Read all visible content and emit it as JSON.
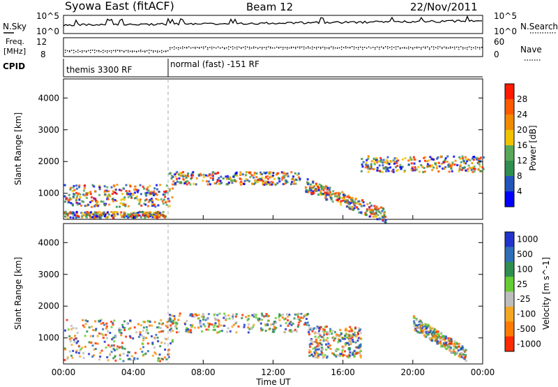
{
  "header": {
    "station": "Syowa East (fitACF)",
    "beam": "Beam 12",
    "date": "22/Nov/2011"
  },
  "noise_panel": {
    "left_label": "N.Sky",
    "right_label": "N.Search",
    "left_ticks": [
      "10^5",
      "10^0"
    ],
    "right_ticks": [
      "10^5",
      "10^0"
    ]
  },
  "freq_panel": {
    "left_label_line1": "Freq.",
    "left_label_line2": "[MHz]",
    "left_ticks": [
      "12",
      "8"
    ],
    "right_label": "Nave",
    "right_ticks": [
      "60",
      "0"
    ]
  },
  "cpid": {
    "label": "CPID",
    "segments": [
      {
        "name": "themis 3300 RF",
        "start_hour": 0,
        "end_hour": 6
      },
      {
        "name": "normal (fast) -151 RF",
        "start_hour": 6,
        "end_hour": 24
      }
    ]
  },
  "chart_data": [
    {
      "type": "heatmap",
      "title": "",
      "xlabel": "Time UT",
      "ylabel": "Slant Range [km]",
      "xlim": [
        0,
        24
      ],
      "ylim": [
        180,
        4600
      ],
      "x_ticks": [
        "00:00",
        "04:00",
        "08:00",
        "12:00",
        "16:00",
        "20:00",
        "00:00"
      ],
      "y_ticks": [
        1000,
        2000,
        3000,
        4000
      ],
      "colorbar": {
        "label": "Power [dB]",
        "range": [
          0,
          32
        ],
        "ticks": [
          "4",
          "8",
          "12",
          "16",
          "20",
          "24",
          "28"
        ],
        "colors": [
          "#0000ff",
          "#2255bb",
          "#2f8f4f",
          "#58a85a",
          "#f0c200",
          "#f08a00",
          "#ff5a00",
          "#ff1a00"
        ]
      },
      "features": [
        {
          "name": "near-range band",
          "start_hour": 0,
          "end_hour": 5.8,
          "range_km": [
            250,
            450
          ],
          "level": "20-28"
        },
        {
          "name": "E-region echoes",
          "start_hour": 0,
          "end_hour": 6.2,
          "range_km": [
            600,
            1300
          ],
          "level": "12-28"
        },
        {
          "name": "F-region band",
          "start_hour": 6,
          "end_hour": 13.5,
          "range_km": [
            1300,
            1700
          ],
          "level": "8-20"
        },
        {
          "name": "descending echo",
          "start_hour": 13.8,
          "end_hour": 18.5,
          "range_km": [
            300,
            1300
          ],
          "level": "16-28"
        },
        {
          "name": "late band",
          "start_hour": 17,
          "end_hour": 24,
          "range_km": [
            1700,
            2200
          ],
          "level": "8-16"
        }
      ]
    },
    {
      "type": "heatmap",
      "title": "",
      "xlabel": "Time UT",
      "ylabel": "Slant Range [km]",
      "xlim": [
        0,
        24
      ],
      "ylim": [
        180,
        4600
      ],
      "x_ticks": [
        "00:00",
        "04:00",
        "08:00",
        "12:00",
        "16:00",
        "20:00",
        "00:00"
      ],
      "y_ticks": [
        1000,
        2000,
        3000,
        4000
      ],
      "colorbar": {
        "label": "Velocity [m s^-1]",
        "range": [
          -1200,
          1200
        ],
        "ticks": [
          "1000",
          "500",
          "100",
          "25",
          "-25",
          "-100",
          "-500",
          "-1000"
        ],
        "colors": [
          "#2233cc",
          "#2e6fb8",
          "#2f8f4f",
          "#66cc33",
          "#bdbdbd",
          "#f5a623",
          "#ff7a00",
          "#ff2a00"
        ]
      },
      "features": [
        {
          "name": "westward flow",
          "start_hour": 0,
          "end_hour": 6.2,
          "range_km": [
            300,
            1600
          ],
          "level": "-100 to -500"
        },
        {
          "name": "low velocity band",
          "start_hour": 6,
          "end_hour": 14,
          "range_km": [
            1200,
            1800
          ],
          "level": "-25 to 25"
        },
        {
          "name": "eastward flow",
          "start_hour": 14,
          "end_hour": 17,
          "range_km": [
            400,
            1400
          ],
          "level": "500-1000"
        },
        {
          "name": "descending eastward echo",
          "start_hour": 20,
          "end_hour": 23,
          "range_km": [
            500,
            1500
          ],
          "level": "100-500"
        }
      ]
    }
  ]
}
